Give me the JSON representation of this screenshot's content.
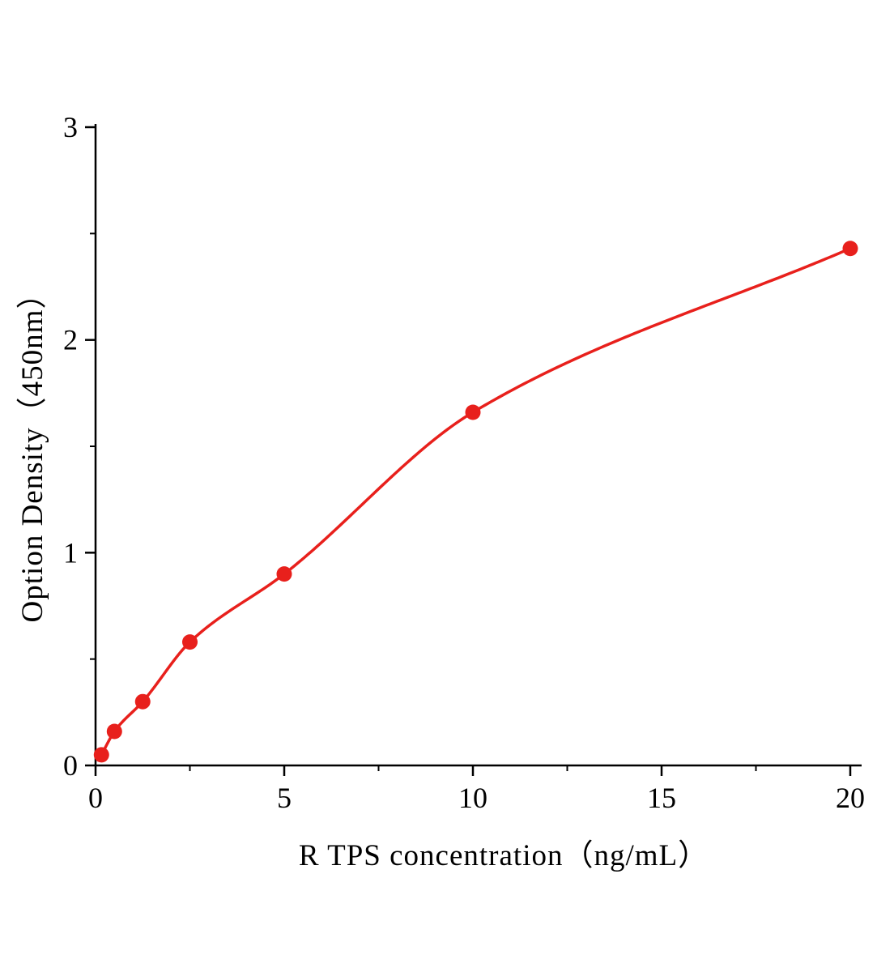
{
  "chart_data": {
    "type": "scatter",
    "title": "",
    "xlabel": "R TPS concentration（ng/mL）",
    "ylabel": "Option Density（450nm）",
    "x": [
      0.156,
      0.5,
      1.25,
      2.5,
      5,
      10,
      20
    ],
    "y": [
      0.05,
      0.16,
      0.3,
      0.58,
      0.9,
      1.66,
      2.43
    ],
    "xlim": [
      0,
      20
    ],
    "ylim": [
      0,
      3
    ],
    "x_major_ticks": [
      0,
      5,
      10,
      15,
      20
    ],
    "x_minor_ticks": [
      2.5,
      7.5,
      12.5,
      17.5
    ],
    "y_major_ticks": [
      0,
      1,
      2,
      3
    ],
    "y_minor_ticks": [
      0.5,
      1.5,
      2.5
    ],
    "grid": "off",
    "legend": "none",
    "curve": "smooth fit through points",
    "colors": {
      "series": "#e8201c",
      "axis": "#000000",
      "background": "#ffffff"
    }
  }
}
